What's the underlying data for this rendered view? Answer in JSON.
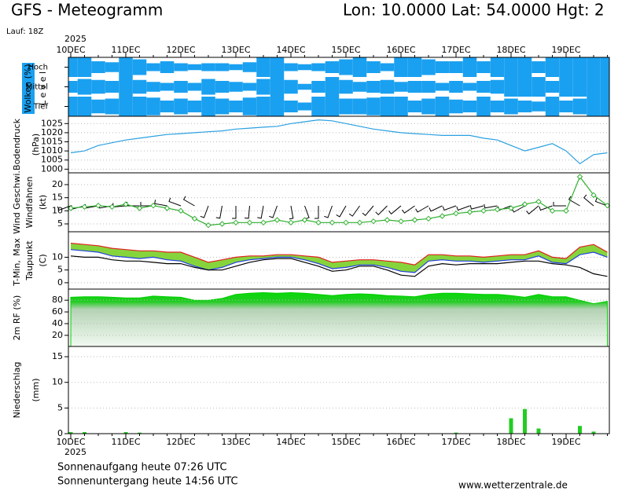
{
  "header": {
    "title": "GFS - Meteogramm",
    "location": "Lon: 10.0000 Lat: 54.0000 Hgt: 2",
    "run": "Lauf: 18Z"
  },
  "chart_data": [
    {
      "type": "cloud-cover",
      "y_label": "Wolken (%)",
      "level_label": "L e v e l",
      "year": "2025",
      "categories": [
        "10DEC",
        null,
        null,
        null,
        "11DEC",
        null,
        null,
        null,
        "12DEC",
        null,
        null,
        null,
        "13DEC",
        null,
        null,
        null,
        "14DEC",
        null,
        null,
        null,
        "15DEC",
        null,
        null,
        null,
        "16DEC",
        null,
        null,
        null,
        "17DEC",
        null,
        null,
        null,
        "18DEC",
        null,
        null,
        null,
        "19DEC",
        null,
        null,
        null
      ],
      "series": [
        {
          "name": "Hoch",
          "color": "#1aa0f0",
          "values": [
            100,
            100,
            60,
            50,
            100,
            80,
            40,
            60,
            40,
            30,
            40,
            40,
            30,
            50,
            100,
            100,
            40,
            30,
            40,
            60,
            80,
            100,
            60,
            40,
            100,
            100,
            80,
            60,
            60,
            100,
            60,
            100,
            100,
            100,
            60,
            100,
            100,
            100,
            100,
            100
          ]
        },
        {
          "name": "Mittel",
          "color": "#1aa0f0",
          "values": [
            60,
            80,
            70,
            60,
            100,
            70,
            50,
            40,
            60,
            40,
            80,
            60,
            50,
            40,
            80,
            100,
            70,
            30,
            60,
            100,
            70,
            50,
            60,
            70,
            50,
            60,
            60,
            40,
            60,
            40,
            60,
            70,
            100,
            100,
            100,
            60,
            100,
            100,
            100,
            100
          ]
        },
        {
          "name": "Tief",
          "color": "#1aa0f0",
          "values": [
            100,
            100,
            70,
            80,
            100,
            100,
            90,
            60,
            80,
            60,
            100,
            80,
            60,
            90,
            100,
            100,
            60,
            40,
            100,
            100,
            80,
            80,
            90,
            100,
            100,
            60,
            80,
            100,
            70,
            60,
            100,
            60,
            80,
            60,
            50,
            100,
            60,
            80,
            100,
            100
          ]
        }
      ]
    },
    {
      "type": "line",
      "y_label": "Bodendruck",
      "y_unit": "(hPa)",
      "ylim": [
        998,
        1029
      ],
      "yticks": [
        1000,
        1005,
        1010,
        1015,
        1020,
        1025
      ],
      "series": [
        {
          "color": "#2aa0e0",
          "values": [
            1009,
            1010,
            1013,
            1014.5,
            1016,
            1017,
            1018,
            1019,
            1019.5,
            1020,
            1020.5,
            1021,
            1022,
            1022.5,
            1023,
            1023.5,
            1025,
            1026,
            1027,
            1026.5,
            1025,
            1023.5,
            1022,
            1021,
            1020,
            1019.5,
            1019,
            1018.5,
            1018.5,
            1018.5,
            1017,
            1016,
            1013,
            1010,
            1012,
            1014,
            1010,
            1003,
            1008,
            1009
          ]
        }
      ]
    },
    {
      "type": "wind",
      "y_unit": "(kt)",
      "ylim": [
        2,
        24.5
      ],
      "yticks": [
        5,
        10,
        15,
        20
      ],
      "series": [
        {
          "name": "Wind Geschwi.",
          "color": "#30b030",
          "values": [
            11,
            11.5,
            12,
            11.5,
            12.5,
            11,
            12,
            11,
            10,
            7,
            4.5,
            5,
            5.5,
            5.5,
            5.5,
            6.5,
            5.5,
            6.5,
            5.5,
            5.5,
            5.5,
            5.5,
            6,
            6.5,
            6,
            6.5,
            7,
            8,
            9,
            9.5,
            10,
            10.5,
            11,
            12.5,
            13.5,
            10,
            10,
            23,
            16,
            12
          ]
        }
      ],
      "barbs": {
        "name": "Windfahnen",
        "direction": [
          250,
          255,
          260,
          260,
          265,
          270,
          270,
          280,
          290,
          300,
          200,
          190,
          180,
          185,
          190,
          200,
          170,
          160,
          180,
          200,
          210,
          215,
          220,
          225,
          230,
          235,
          240,
          245,
          250,
          250,
          255,
          260,
          250,
          240,
          230,
          250,
          270,
          300,
          310,
          290
        ]
      }
    },
    {
      "type": "temperature",
      "y_unit": "(C)",
      "ylim": [
        -2.5,
        20
      ],
      "yticks": [
        0,
        5,
        10
      ],
      "fill": "#86d43c",
      "series": [
        {
          "name": "Max",
          "color": "#e02020",
          "values": [
            15.5,
            15,
            14.5,
            13.5,
            13,
            12.5,
            12.5,
            12,
            12,
            10,
            8,
            9,
            10,
            10.5,
            10.5,
            11,
            11,
            10.5,
            10,
            8,
            8.5,
            9,
            9,
            8.5,
            8,
            7,
            11,
            11,
            10.5,
            10.5,
            10,
            10.5,
            11,
            11,
            12.5,
            10,
            9.5,
            14,
            15,
            12
          ]
        },
        {
          "name": "T-Min,",
          "color": "#2040e0",
          "values": [
            13,
            12.5,
            12,
            10.5,
            10,
            9.5,
            10,
            9,
            8.5,
            6.5,
            5,
            6,
            8,
            9,
            9.5,
            10,
            10,
            9,
            7.5,
            5.5,
            6,
            7,
            7,
            6,
            4.5,
            4,
            8.5,
            9,
            8.5,
            8.5,
            8,
            8.5,
            9,
            9,
            10.5,
            8,
            7.5,
            11,
            12,
            10
          ]
        },
        {
          "name": "Taupunkt",
          "color": "#000000",
          "values": [
            10.5,
            10,
            10,
            9,
            8.5,
            8.5,
            8,
            7.5,
            7.5,
            6,
            5,
            5,
            6.5,
            8,
            9,
            9.5,
            9.5,
            8,
            6.5,
            4.5,
            5,
            6.5,
            6.5,
            5,
            3,
            2.5,
            6.5,
            7.5,
            7,
            7.5,
            7.5,
            7.5,
            8,
            8.5,
            8.5,
            7.5,
            7,
            6,
            3.5,
            2.5
          ]
        }
      ]
    },
    {
      "type": "area",
      "y_label": "2m RF (%)",
      "ylim": [
        1,
        99
      ],
      "yticks": [
        20,
        40,
        60,
        80
      ],
      "series": [
        {
          "color": "#00cc00",
          "values": [
            85,
            86,
            86,
            85,
            84,
            84,
            87,
            86,
            85,
            80,
            80,
            83,
            90,
            92,
            93,
            92,
            93,
            92,
            90,
            88,
            90,
            91,
            90,
            88,
            87,
            86,
            90,
            92,
            92,
            91,
            90,
            90,
            88,
            85,
            90,
            86,
            86,
            80,
            74,
            78
          ]
        }
      ]
    },
    {
      "type": "bar",
      "y_label": "Niederschlag",
      "y_unit": "(mm)",
      "ylim": [
        0,
        17
      ],
      "yticks": [
        0,
        5,
        10,
        15
      ],
      "year": "2025",
      "categories": [
        "10DEC",
        null,
        null,
        null,
        "11DEC",
        null,
        null,
        null,
        "12DEC",
        null,
        null,
        null,
        "13DEC",
        null,
        null,
        null,
        "14DEC",
        null,
        null,
        null,
        "15DEC",
        null,
        null,
        null,
        "16DEC",
        null,
        null,
        null,
        "17DEC",
        null,
        null,
        null,
        "18DEC",
        null,
        null,
        null,
        "19DEC",
        null,
        null,
        null
      ],
      "series": [
        {
          "color": "#22cc22",
          "values": [
            0.3,
            0.3,
            0,
            0,
            0.3,
            0.2,
            0,
            0,
            0,
            0,
            0,
            0,
            0,
            0,
            0,
            0,
            0,
            0,
            0,
            0,
            0,
            0,
            0,
            0,
            0,
            0,
            0,
            0,
            0.2,
            0,
            0,
            0,
            3,
            4.8,
            1,
            0,
            0,
            1.5,
            0.4,
            0
          ]
        }
      ]
    }
  ],
  "footer": {
    "sunrise": "Sonnenaufgang heute 07:26 UTC",
    "sunset": "Sonnenuntergang heute 14:56 UTC",
    "source": "www.wetterzentrale.de"
  }
}
